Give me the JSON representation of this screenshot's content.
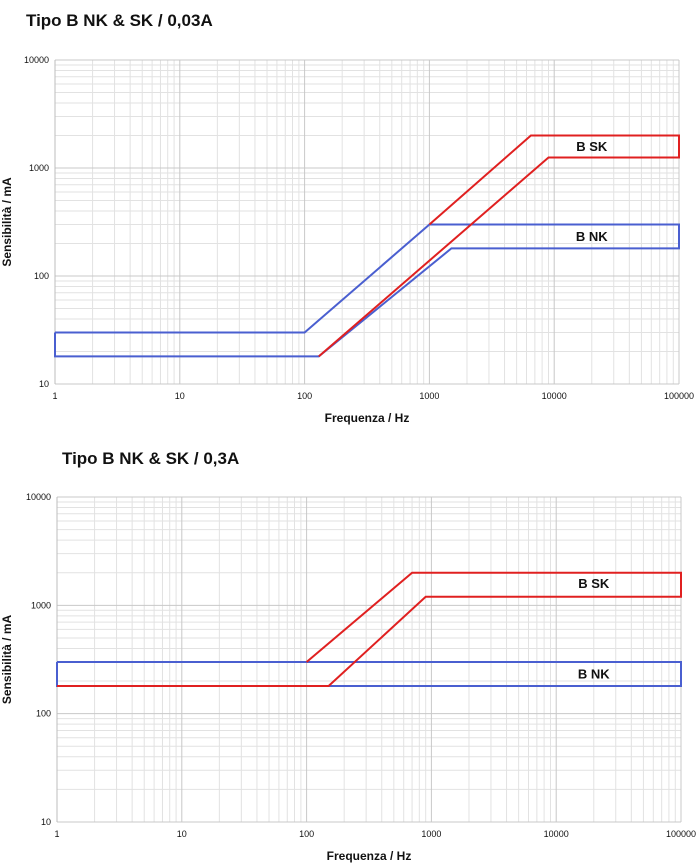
{
  "chart_data": [
    {
      "type": "line",
      "title": "Tipo B NK & SK / 0,03A",
      "xlabel": "Frequenza / Hz",
      "ylabel": "Sensibilità / mA",
      "xscale": "log",
      "yscale": "log",
      "xlim": [
        1,
        100000
      ],
      "ylim": [
        10,
        10000
      ],
      "x_ticks": [
        "1",
        "10",
        "100",
        "1000",
        "10000",
        "100000"
      ],
      "y_ticks": [
        "10",
        "100",
        "1000",
        "10000"
      ],
      "grid": true,
      "colors": {
        "B NK": "#4a5fd0",
        "B SK": "#e02020"
      },
      "series": [
        {
          "name": "B NK",
          "x": [
            1,
            100,
            1000,
            100000,
            100000,
            1500,
            130,
            1,
            1
          ],
          "y": [
            30,
            30,
            300,
            300,
            180,
            180,
            18,
            18,
            30
          ]
        },
        {
          "name": "B SK",
          "x": [
            1000,
            6500,
            100000,
            100000,
            9000,
            130
          ],
          "y": [
            300,
            2000,
            2000,
            1250,
            1250,
            18
          ]
        }
      ],
      "annotations": [
        {
          "text": "B SK",
          "x": 20000,
          "y": 1600
        },
        {
          "text": "B NK",
          "x": 20000,
          "y": 235
        }
      ]
    },
    {
      "type": "line",
      "title": "Tipo B NK & SK / 0,3A",
      "xlabel": "Frequenza / Hz",
      "ylabel": "Sensibilità / mA",
      "xscale": "log",
      "yscale": "log",
      "xlim": [
        1,
        100000
      ],
      "ylim": [
        10,
        10000
      ],
      "x_ticks": [
        "1",
        "10",
        "100",
        "1000",
        "10000",
        "100000"
      ],
      "y_ticks": [
        "10",
        "100",
        "1000",
        "10000"
      ],
      "grid": true,
      "colors": {
        "B NK": "#4a5fd0",
        "B SK": "#e02020"
      },
      "series": [
        {
          "name": "B NK",
          "x": [
            1,
            100000,
            100000,
            1,
            1
          ],
          "y": [
            300,
            300,
            180,
            180,
            300
          ]
        },
        {
          "name": "B SK",
          "x": [
            100,
            700,
            100000,
            100000,
            900,
            150,
            1
          ],
          "y": [
            300,
            2000,
            2000,
            1200,
            1200,
            180,
            180
          ]
        }
      ],
      "annotations": [
        {
          "text": "B SK",
          "x": 20000,
          "y": 1600
        },
        {
          "text": "B NK",
          "x": 20000,
          "y": 235
        }
      ]
    }
  ]
}
